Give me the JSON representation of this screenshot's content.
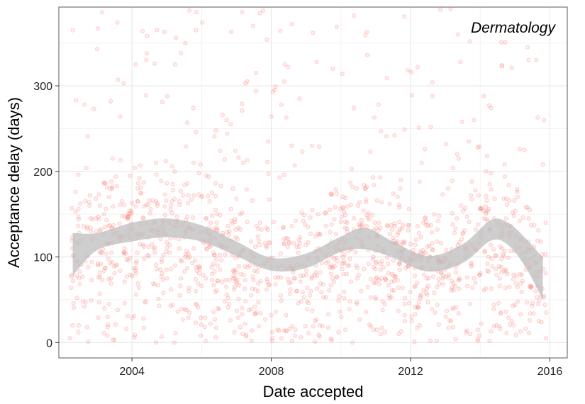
{
  "chart_data": {
    "type": "scatter",
    "title": "",
    "annotation": "Dermatology",
    "xlabel": "Date accepted",
    "ylabel": "Acceptance delay (days)",
    "xlim": [
      2001.9,
      2016.5
    ],
    "ylim": [
      -18,
      392
    ],
    "x_ticks": [
      2004,
      2008,
      2012,
      2016
    ],
    "x_tick_labels": [
      "2004",
      "2008",
      "2012",
      "2016"
    ],
    "y_ticks": [
      0,
      100,
      200,
      300
    ],
    "y_tick_labels": [
      "0",
      "100",
      "200",
      "300"
    ],
    "grid": true,
    "point_color": "#f8766d",
    "point_opacity": 0.25,
    "smooth_fill": "#bdbdbd",
    "point_count": 1500,
    "points": [],
    "smooth": {
      "x": [
        2002.3,
        2003.0,
        2004.0,
        2005.0,
        2006.0,
        2007.0,
        2008.0,
        2009.0,
        2010.0,
        2010.7,
        2011.5,
        2012.5,
        2013.5,
        2014.3,
        2014.8,
        2015.3,
        2015.8
      ],
      "lower": [
        78,
        108,
        118,
        123,
        118,
        101,
        84,
        87,
        106,
        109,
        99,
        83,
        93,
        119,
        114,
        88,
        50
      ],
      "upper": [
        128,
        128,
        140,
        145,
        137,
        118,
        99,
        104,
        124,
        134,
        118,
        101,
        115,
        143,
        140,
        122,
        99
      ]
    }
  }
}
